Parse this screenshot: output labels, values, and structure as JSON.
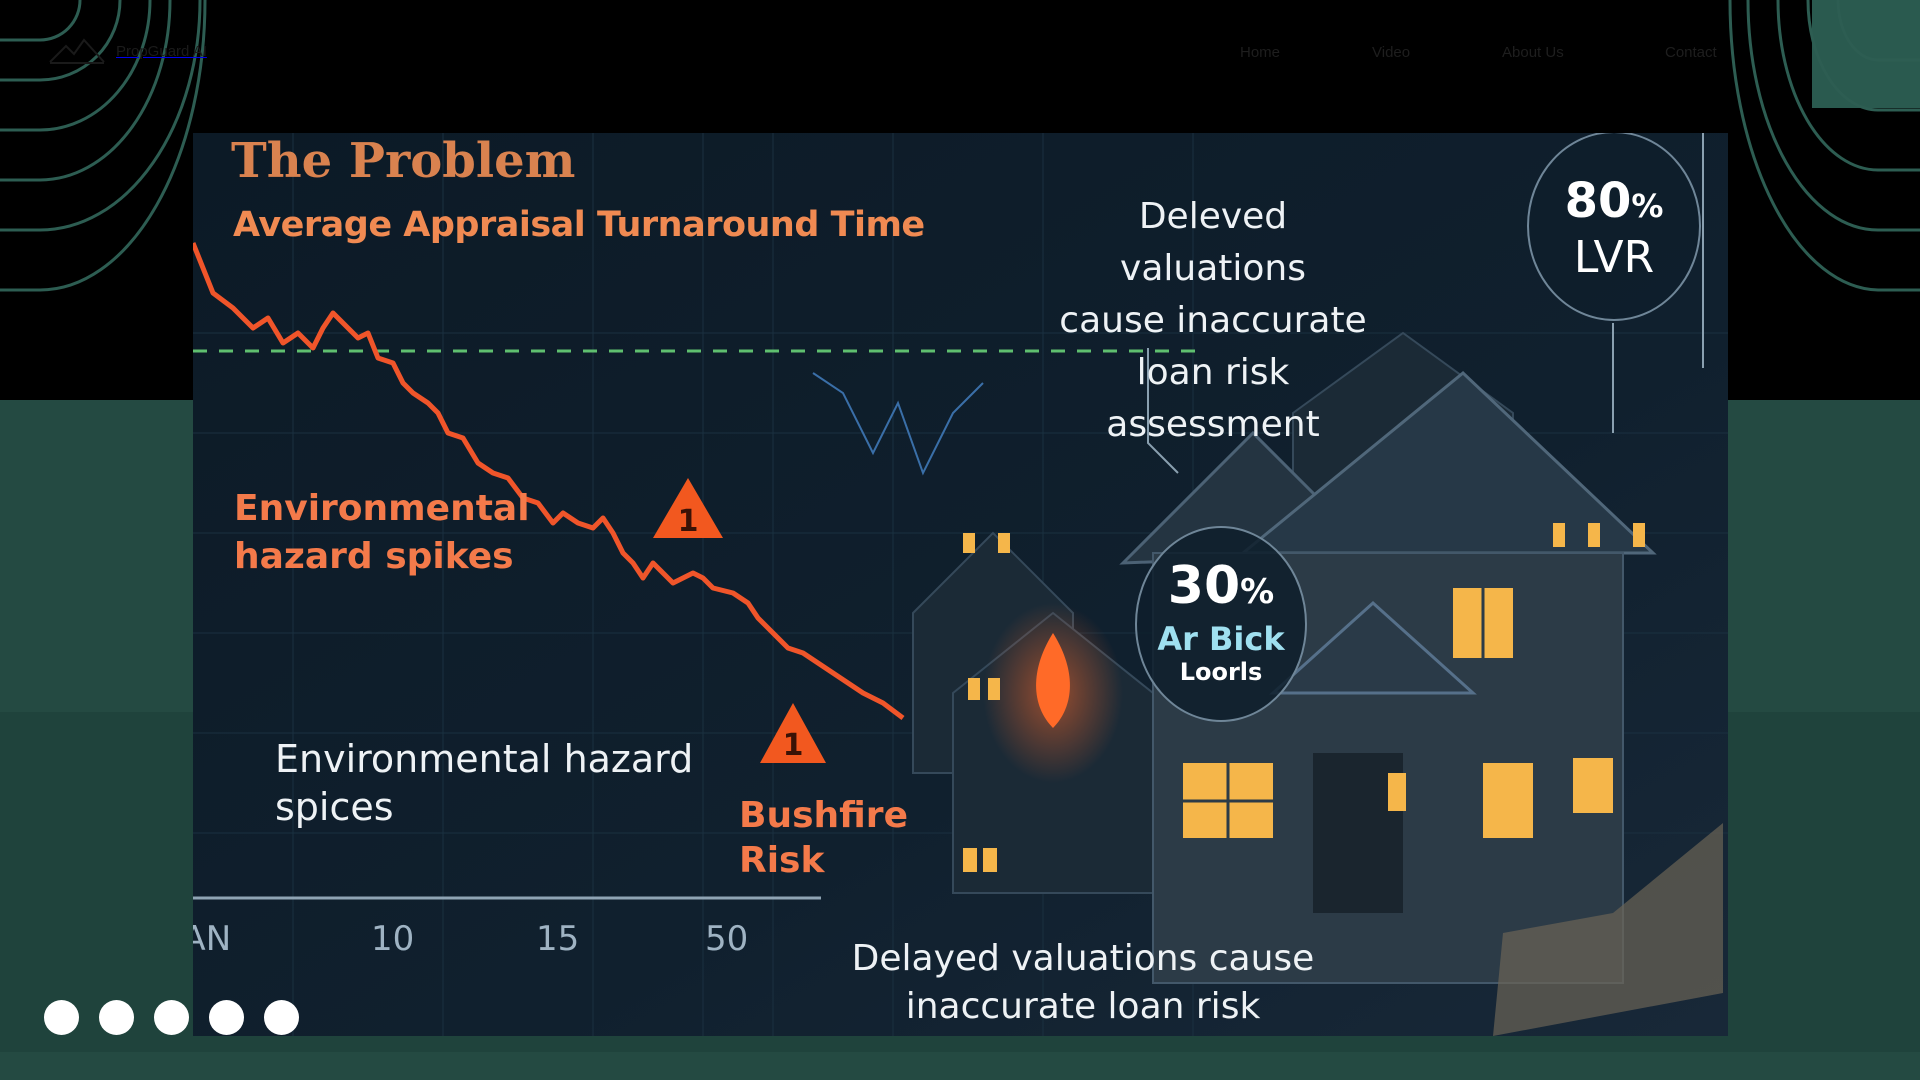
{
  "nav": {
    "brand": "PropGuard AI",
    "links": [
      "Home",
      "Video",
      "About Us",
      "Contact"
    ]
  },
  "slide": {
    "title": "The Problem",
    "subtitle": "Average Appraisal Turnaround Time",
    "callout_top": [
      "Deleved valuations",
      "cause inaccurate",
      "loan risk assessment"
    ],
    "badge_lvr": {
      "value": "80",
      "unit": "%",
      "label": "LVR"
    },
    "badge_risk": {
      "value": "30",
      "unit": "%",
      "line1": "Ar Bick",
      "line2": "Loorls"
    },
    "hazard_spikes": [
      "Environmental",
      "hazard spikes"
    ],
    "hazard_spices": [
      "Environmental hazard",
      "spices"
    ],
    "bushfire": [
      "Bushfire",
      "Risk"
    ],
    "axis_ticks": [
      "JAN",
      "10",
      "15",
      "50"
    ],
    "callout_bottom": [
      "Delayed valuations cause",
      "inaccurate loan risk assessment"
    ]
  },
  "carousel": {
    "dot_count": 5
  },
  "colors": {
    "teal": "#244a42",
    "accent_orange": "#f47a4a",
    "title_orange": "#d9824f"
  }
}
